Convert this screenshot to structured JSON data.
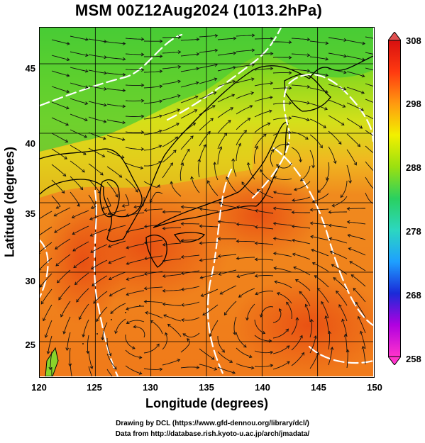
{
  "title": "MSM 00Z12Aug2024 (1013.2hPa)",
  "axes": {
    "xlabel": "Longitude (degrees)",
    "ylabel": "Latitude  (degrees)",
    "xticks": [
      "120",
      "125",
      "130",
      "135",
      "140",
      "145",
      "150"
    ],
    "yticks": [
      "45",
      "40",
      "35",
      "30",
      "25"
    ]
  },
  "colorbar": {
    "ticks": [
      "308",
      "298",
      "288",
      "278",
      "268",
      "258"
    ],
    "colors": [
      "#ff33cc",
      "#b000e0",
      "#1a2ad8",
      "#1ea0ff",
      "#2cd7c0",
      "#2ad060",
      "#9be010",
      "#f2f000",
      "#ff9a10",
      "#ff3a10",
      "#d81010"
    ]
  },
  "credits": {
    "line1": "Drawing by DCL (https://www.gfd-dennou.org/library/dcl/)",
    "line2": "Data from http://database.rish.kyoto-u.ac.jp/arch/jmadata/"
  },
  "map": {
    "lon_range": [
      120,
      150
    ],
    "lat_range": [
      22.5,
      47.6
    ],
    "colors": {
      "ocean_warm": "#f07a1a",
      "ocean_hot": "#ec5a14",
      "mid": "#f0a020",
      "land_yellow": "#d4e01a",
      "land_green": "#6ed22a",
      "cool_green": "#3cc83a",
      "isoline": "#ffffff",
      "streamline": "#111111",
      "coast": "#000000"
    }
  }
}
